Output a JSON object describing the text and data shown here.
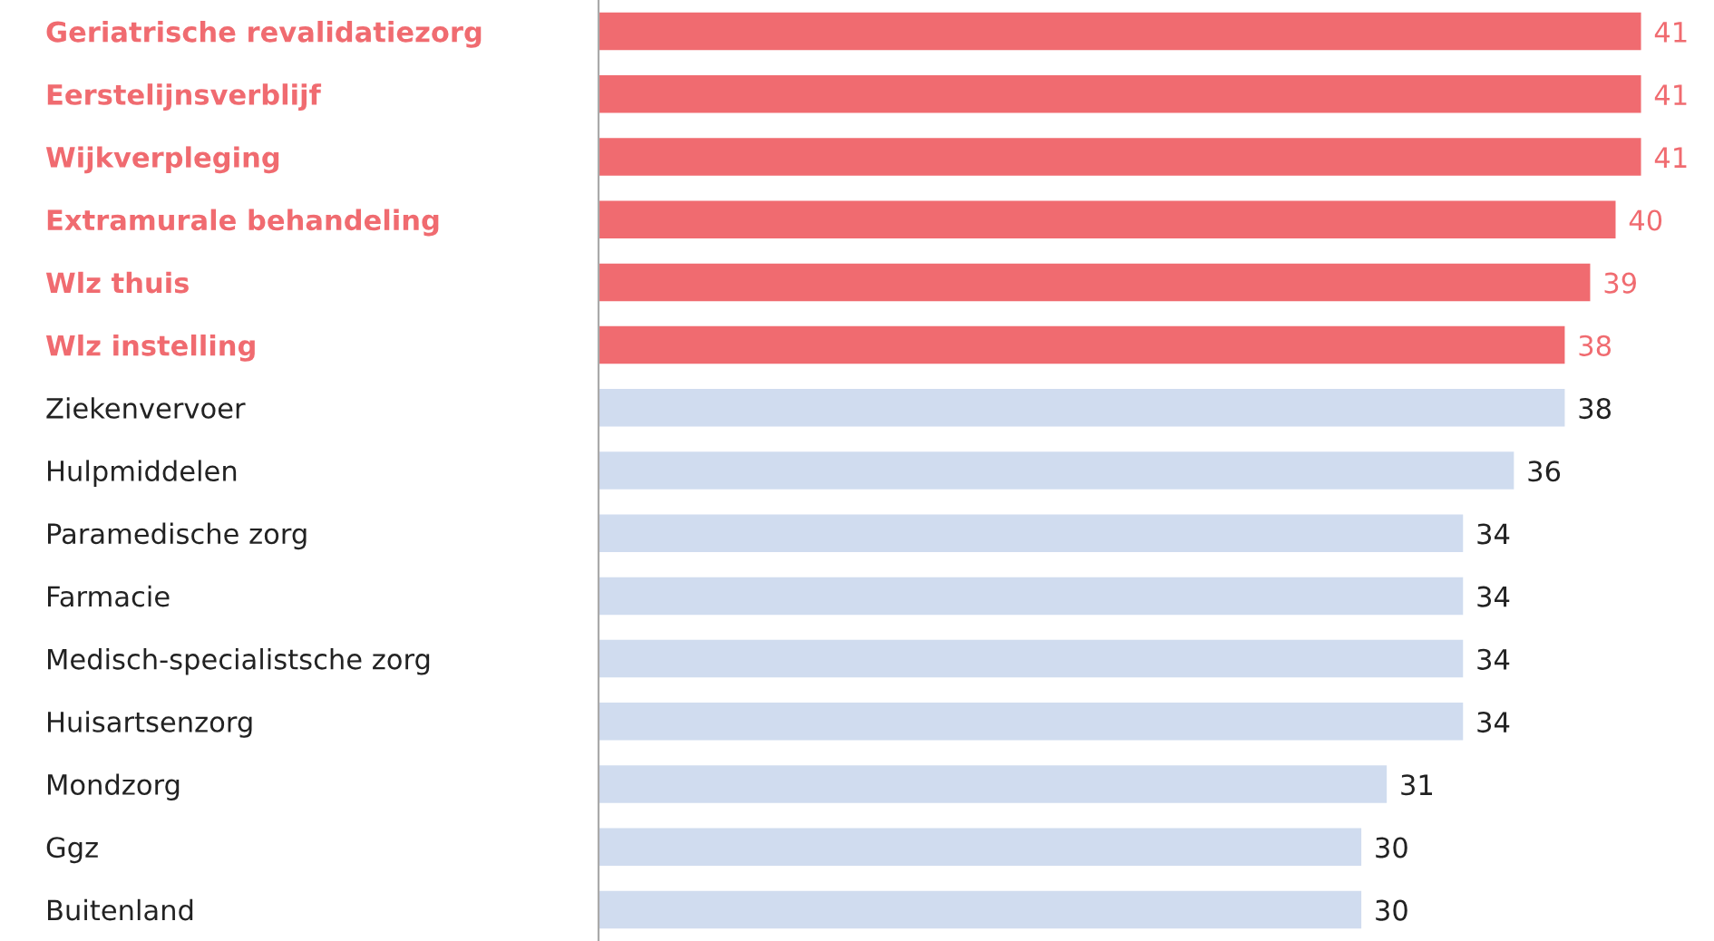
{
  "chart_data": {
    "type": "bar",
    "orientation": "horizontal",
    "data_labels": true,
    "categories": [
      "Geriatrische revalidatiezorg",
      "Eerstelijnsverblijf",
      "Wijkverpleging",
      "Extramurale behandeling",
      "Wlz thuis",
      "Wlz instelling",
      "Ziekenvervoer",
      "Hulpmiddelen",
      "Paramedische zorg",
      "Farmacie",
      "Medisch-specialistsche zorg",
      "Huisartsenzorg",
      "Mondzorg",
      "Ggz",
      "Buitenland"
    ],
    "values": [
      41,
      41,
      41,
      40,
      39,
      38,
      38,
      36,
      34,
      34,
      34,
      34,
      31,
      30,
      30
    ],
    "colors": [
      "#f06b70",
      "#f06b70",
      "#f06b70",
      "#f06b70",
      "#f06b70",
      "#f06b70",
      "#d0dcef",
      "#d0dcef",
      "#d0dcef",
      "#d0dcef",
      "#d0dcef",
      "#d0dcef",
      "#d0dcef",
      "#d0dcef",
      "#d0dcef"
    ]
  }
}
